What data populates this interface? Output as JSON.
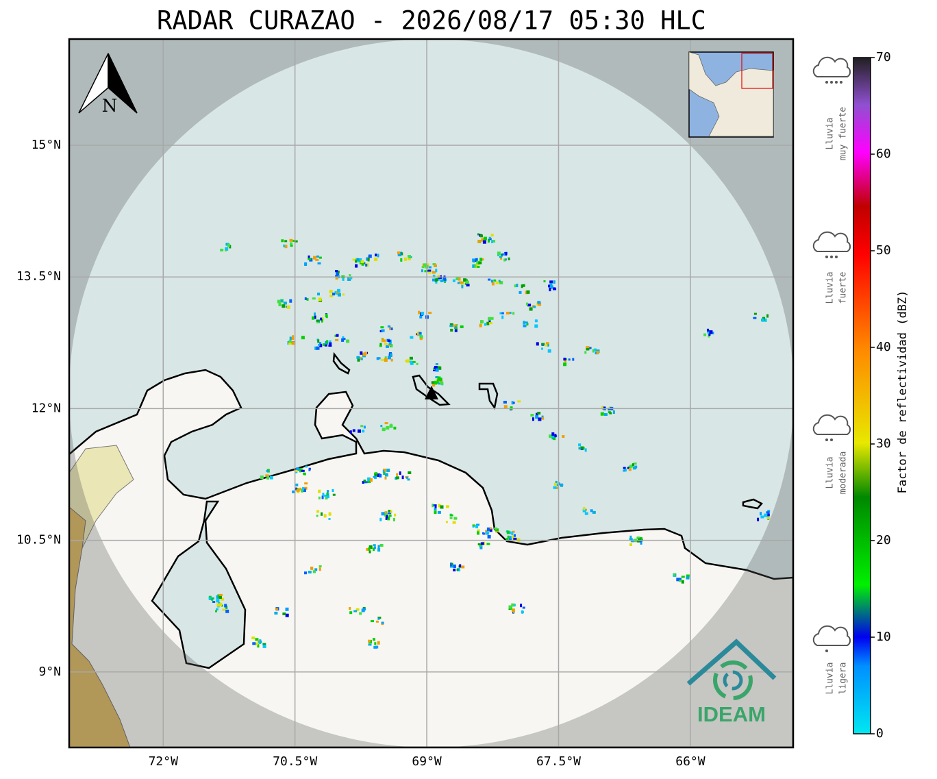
{
  "title": "RADAR CURAZAO - 2026/08/17 05:30 HLC",
  "map": {
    "lonlim": [
      -73.07,
      -64.83
    ],
    "latlim": [
      8.14,
      16.21
    ],
    "lon_ticks": [
      {
        "value": -72,
        "label": "72°W"
      },
      {
        "value": -70.5,
        "label": "70.5°W"
      },
      {
        "value": -69,
        "label": "69°W"
      },
      {
        "value": -67.5,
        "label": "67.5°W"
      },
      {
        "value": -66,
        "label": "66°W"
      }
    ],
    "lat_ticks": [
      {
        "value": 15,
        "label": "15°N"
      },
      {
        "value": 13.5,
        "label": "13.5°N"
      },
      {
        "value": 12,
        "label": "12°N"
      },
      {
        "value": 10.5,
        "label": "10.5°N"
      },
      {
        "value": 9,
        "label": "9°N"
      }
    ]
  },
  "north_arrow": "N",
  "colorbar": {
    "label": "Factor de reflectividad (dBZ)",
    "lim": [
      0,
      70
    ],
    "ticks": [
      0,
      10,
      20,
      30,
      40,
      50,
      60,
      70
    ]
  },
  "rain_levels": [
    {
      "lines": [
        "Lluvia",
        "muy fuerte"
      ]
    },
    {
      "lines": [
        "Lluvia",
        "fuerte"
      ]
    },
    {
      "lines": [
        "Lluvia",
        "moderada"
      ]
    },
    {
      "lines": [
        "Lluvia",
        "ligera"
      ]
    }
  ],
  "logo": "IDEAM"
}
